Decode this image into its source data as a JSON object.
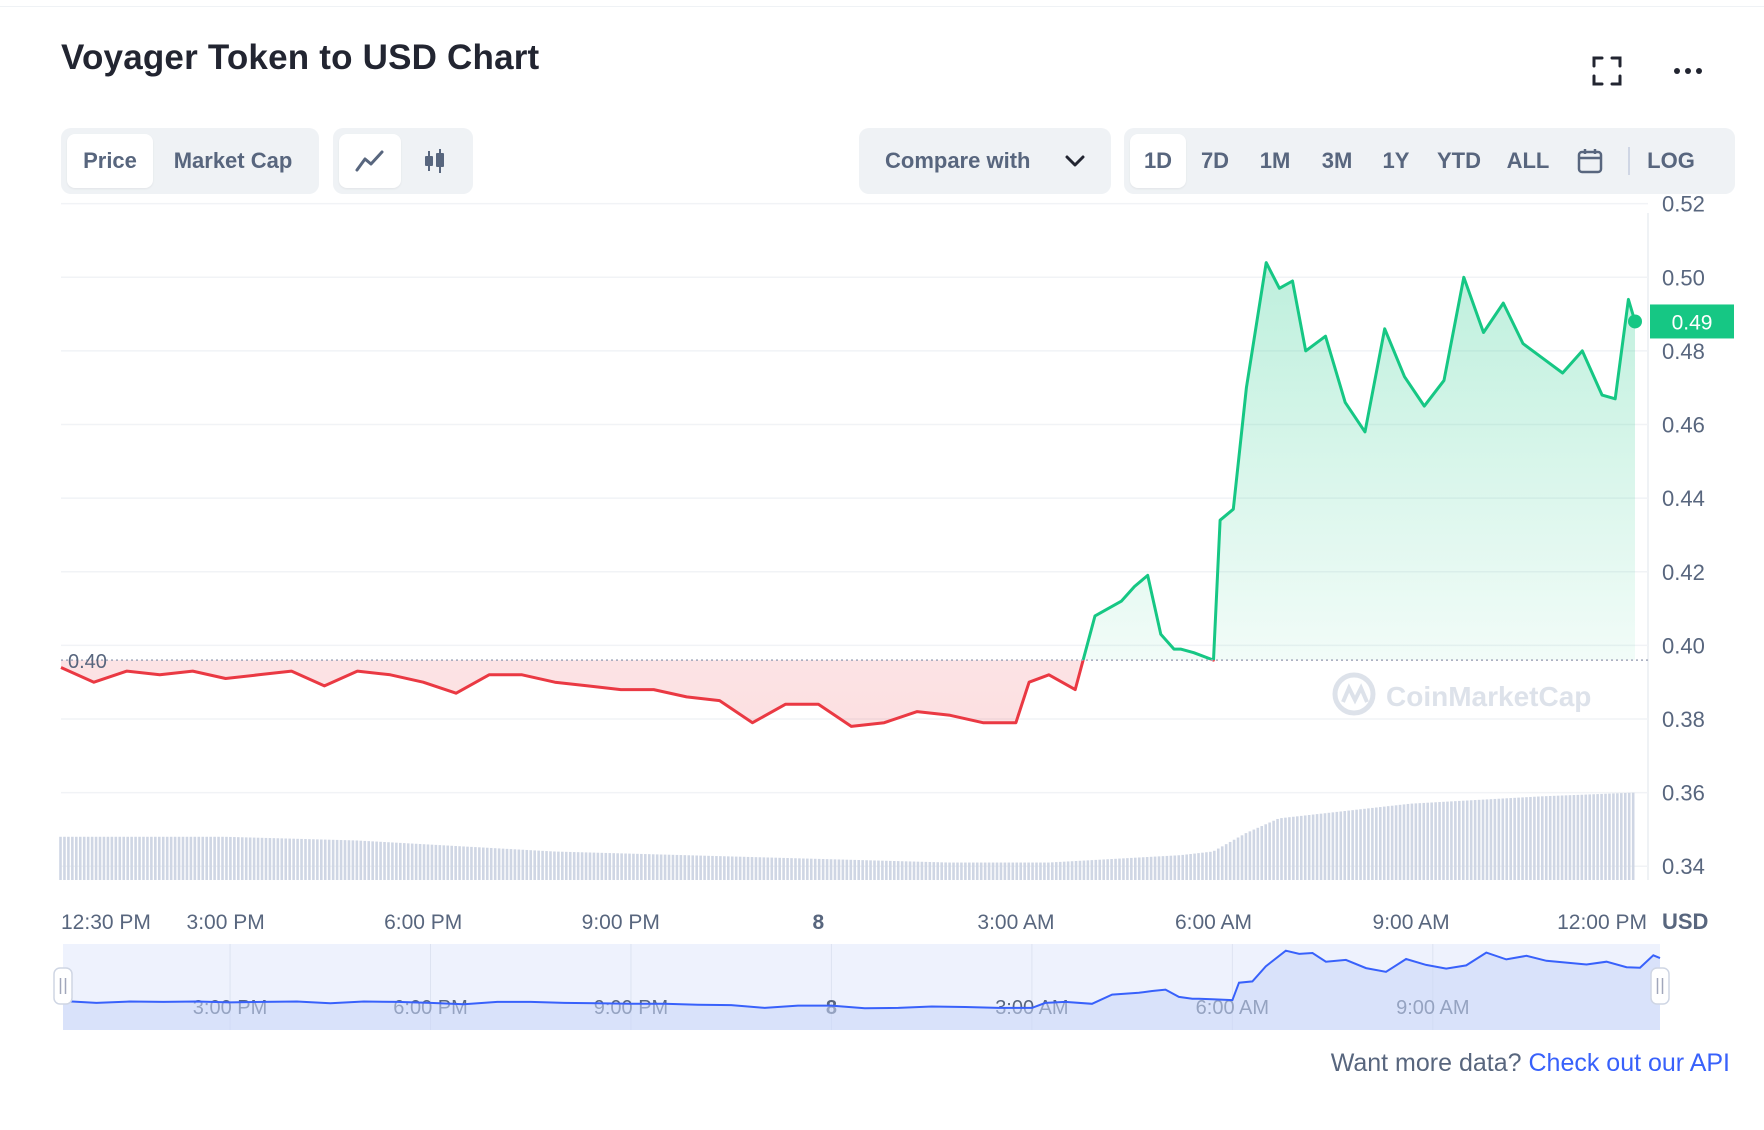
{
  "header": {
    "title": "Voyager Token to USD Chart"
  },
  "toolbar": {
    "data_tabs": [
      "Price",
      "Market Cap"
    ],
    "active_data_tab": "Price",
    "chart_style_icons": [
      "line-chart-icon",
      "candlestick-icon"
    ],
    "compare_label": "Compare with",
    "ranges": [
      "1D",
      "7D",
      "1M",
      "3M",
      "1Y",
      "YTD",
      "ALL"
    ],
    "active_range": "1D",
    "log_label": "LOG"
  },
  "colors": {
    "up": "#16c784",
    "down": "#ea3943",
    "navigator_line": "#3861fb",
    "volume": "#cfd6e4",
    "accent_link": "#3861fb"
  },
  "chart_data": {
    "type": "line",
    "title": "Voyager Token to USD Chart",
    "currency_label": "USD",
    "current_price_label": "0.49",
    "reference_price_label": "0.40",
    "reference_price": 0.396,
    "ylim": [
      0.333,
      0.521
    ],
    "y_ticks": [
      "0.52",
      "0.50",
      "0.48",
      "0.46",
      "0.44",
      "0.42",
      "0.40",
      "0.38",
      "0.36",
      "0.34"
    ],
    "x_ticks": [
      "12:30 PM",
      "3:00 PM",
      "6:00 PM",
      "9:00 PM",
      "8",
      "3:00 AM",
      "6:00 AM",
      "9:00 AM",
      "12:00 PM"
    ],
    "x_tick_hours": [
      12.5,
      15,
      18,
      21,
      24,
      27,
      30,
      33,
      36
    ],
    "x_range_hours": [
      12.5,
      36.4
    ],
    "price_series": {
      "name": "Price",
      "x_hours": [
        12.5,
        13.0,
        13.5,
        14.0,
        14.5,
        15.0,
        15.5,
        16.0,
        16.5,
        17.0,
        17.5,
        18.0,
        18.5,
        19.0,
        19.5,
        20.0,
        20.5,
        21.0,
        21.5,
        22.0,
        22.5,
        23.0,
        23.5,
        24.0,
        24.5,
        25.0,
        25.5,
        26.0,
        26.5,
        27.0,
        27.2,
        27.5,
        27.9,
        28.2,
        28.6,
        28.8,
        29.0,
        29.2,
        29.4,
        29.5,
        29.7,
        30.0,
        30.1,
        30.3,
        30.5,
        30.8,
        31.0,
        31.2,
        31.4,
        31.7,
        32.0,
        32.3,
        32.6,
        32.9,
        33.2,
        33.5,
        33.8,
        34.1,
        34.4,
        34.7,
        35.0,
        35.3,
        35.6,
        35.9,
        36.1,
        36.3,
        36.4
      ],
      "y_values": [
        0.394,
        0.39,
        0.393,
        0.392,
        0.393,
        0.391,
        0.392,
        0.393,
        0.389,
        0.393,
        0.392,
        0.39,
        0.387,
        0.392,
        0.392,
        0.39,
        0.389,
        0.388,
        0.388,
        0.386,
        0.385,
        0.379,
        0.384,
        0.384,
        0.378,
        0.379,
        0.382,
        0.381,
        0.379,
        0.379,
        0.39,
        0.392,
        0.388,
        0.408,
        0.412,
        0.416,
        0.419,
        0.403,
        0.399,
        0.399,
        0.398,
        0.396,
        0.434,
        0.437,
        0.47,
        0.504,
        0.497,
        0.499,
        0.48,
        0.484,
        0.466,
        0.458,
        0.486,
        0.473,
        0.465,
        0.472,
        0.5,
        0.485,
        0.493,
        0.482,
        0.478,
        0.474,
        0.48,
        0.468,
        0.467,
        0.494,
        0.488
      ]
    },
    "volume_series": {
      "name": "Volume",
      "x_hours": [
        12.5,
        15.0,
        17.0,
        18.0,
        20.0,
        22.0,
        24.0,
        26.0,
        27.5,
        28.5,
        29.5,
        30.0,
        30.5,
        31.0,
        32.0,
        33.0,
        34.0,
        35.0,
        36.4
      ],
      "y_values": [
        0.348,
        0.348,
        0.347,
        0.346,
        0.344,
        0.343,
        0.342,
        0.341,
        0.341,
        0.342,
        0.343,
        0.344,
        0.349,
        0.353,
        0.355,
        0.357,
        0.358,
        0.359,
        0.36
      ]
    },
    "navigator": {
      "x_ticks": [
        "3:00 PM",
        "6:00 PM",
        "9:00 PM",
        "8",
        "3:00 AM",
        "6:00 AM",
        "9:00 AM"
      ],
      "x_tick_hours": [
        15,
        18,
        21,
        24,
        27,
        30,
        33
      ]
    },
    "watermark": "CoinMarketCap",
    "grid": true
  },
  "footer": {
    "prompt_text": "Want more data?",
    "link_text": "Check out our API"
  }
}
